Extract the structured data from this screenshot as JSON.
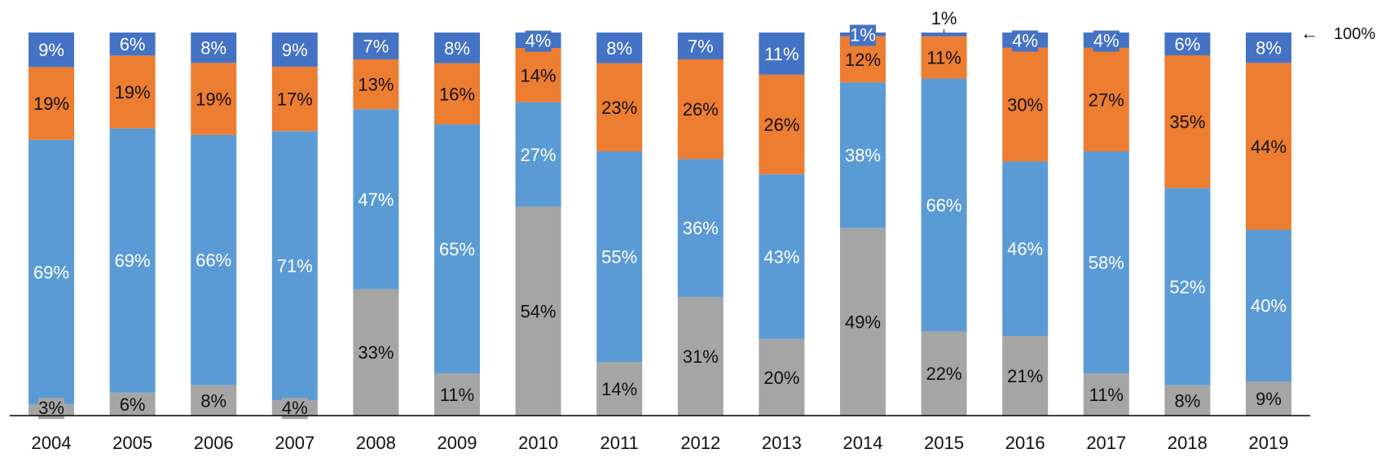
{
  "chart_data": {
    "type": "bar",
    "stacked": true,
    "normalized": true,
    "categories": [
      "2004",
      "2005",
      "2006",
      "2007",
      "2008",
      "2009",
      "2010",
      "2011",
      "2012",
      "2013",
      "2014",
      "2015",
      "2016",
      "2017",
      "2018",
      "2019"
    ],
    "series": [
      {
        "color": "#a5a5a5",
        "label_color": "#111111",
        "values": [
          3,
          6,
          8,
          4,
          33,
          11,
          54,
          14,
          31,
          20,
          49,
          22,
          21,
          11,
          8,
          9
        ]
      },
      {
        "color": "#5b9bd5",
        "label_color": "#ffffff",
        "values": [
          69,
          69,
          66,
          71,
          47,
          65,
          27,
          55,
          36,
          43,
          38,
          66,
          46,
          58,
          52,
          40
        ]
      },
      {
        "color": "#ed7d31",
        "label_color": "#111111",
        "values": [
          19,
          19,
          19,
          17,
          13,
          16,
          14,
          23,
          26,
          26,
          12,
          11,
          30,
          27,
          35,
          44
        ]
      },
      {
        "color": "#4472c4",
        "label_color": "#ffffff",
        "values": [
          9,
          6,
          8,
          9,
          7,
          8,
          4,
          8,
          7,
          11,
          1,
          1,
          4,
          4,
          6,
          8
        ]
      }
    ],
    "label_suffix": "%",
    "annotation": {
      "text": "100%",
      "arrow": "←"
    },
    "ylim": [
      0,
      100
    ],
    "grid": false,
    "legend": "none",
    "xlabel": "",
    "ylabel": ""
  }
}
